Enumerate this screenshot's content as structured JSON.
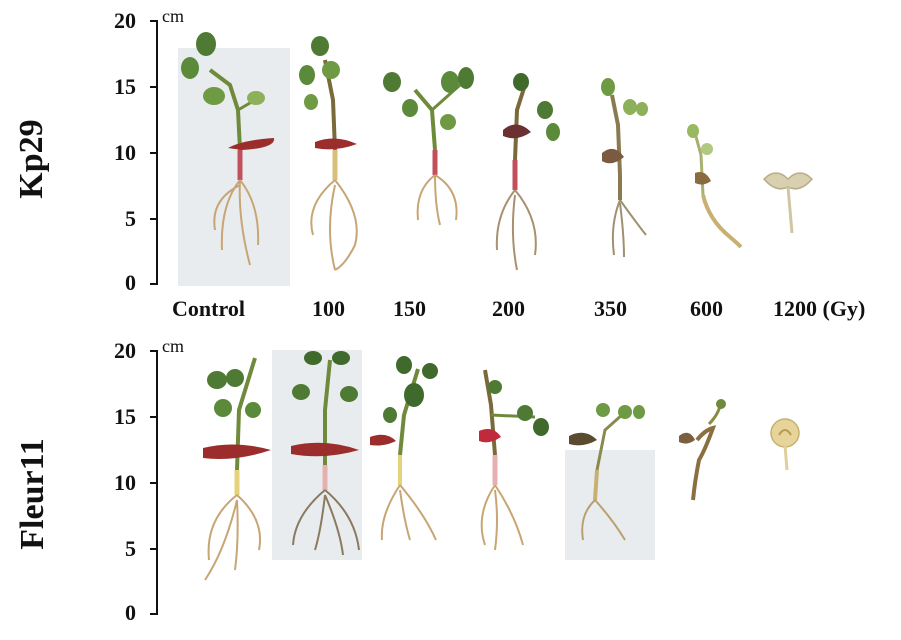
{
  "rows": [
    {
      "label": "Kp29"
    },
    {
      "label": "Fleur11"
    }
  ],
  "axis": {
    "unit": "cm",
    "ticks": [
      "20",
      "15",
      "10",
      "5",
      "0"
    ]
  },
  "doses": {
    "labels": [
      "Control",
      "100",
      "150",
      "200",
      "350",
      "600",
      "1200 (Gy)"
    ]
  }
}
